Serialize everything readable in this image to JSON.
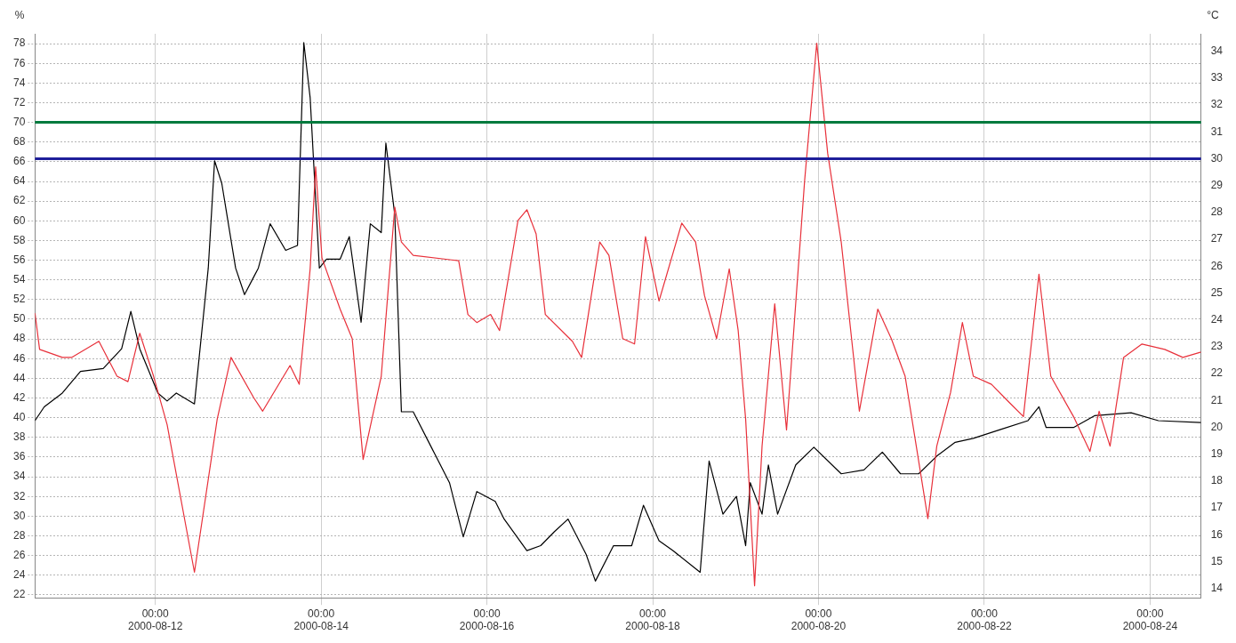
{
  "chart_data": {
    "type": "line",
    "ylabel": "%",
    "y2label": "°C",
    "xlim": [
      "2000-08-10T13:10",
      "2000-08-24T14:45"
    ],
    "xticks": [
      {
        "value": "2000-08-12T00:00",
        "label": "00:00\n2000-08-12"
      },
      {
        "value": "2000-08-14T00:00",
        "label": "00:00\n2000-08-14"
      },
      {
        "value": "2000-08-16T00:00",
        "label": "00:00\n2000-08-16"
      },
      {
        "value": "2000-08-18T00:00",
        "label": "00:00\n2000-08-18"
      },
      {
        "value": "2000-08-20T00:00",
        "label": "00:00\n2000-08-20"
      },
      {
        "value": "2000-08-22T00:00",
        "label": "00:00\n2000-08-22"
      },
      {
        "value": "2000-08-24T00:00",
        "label": "00:00\n2000-08-24"
      }
    ],
    "ylim": [
      21.7,
      79
    ],
    "yticks": [
      22,
      24,
      26,
      28,
      30,
      32,
      34,
      36,
      38,
      40,
      42,
      44,
      46,
      48,
      50,
      52,
      54,
      56,
      58,
      60,
      62,
      64,
      66,
      68,
      70,
      72,
      74,
      76,
      78
    ],
    "y2lim": [
      13.65,
      34.65
    ],
    "y2ticks": [
      14,
      15,
      16,
      17,
      18,
      19,
      20,
      21,
      22,
      23,
      24,
      25,
      26,
      27,
      28,
      29,
      30,
      31,
      32,
      33,
      34
    ],
    "grid": true,
    "legend": false,
    "ref_lines": [
      {
        "axis": "y",
        "value": 70,
        "color": "#007a3d"
      },
      {
        "axis": "y2",
        "value": 30,
        "color": "#1f1f9a"
      }
    ],
    "series": [
      {
        "color": "#000000",
        "axis": "y",
        "x": [
          "2000-08-10T13:10",
          "2000-08-10T15:50",
          "2000-08-10T21:05",
          "2000-08-11T02:20",
          "2000-08-11T08:55",
          "2000-08-11T14:15",
          "2000-08-11T16:55",
          "2000-08-11T19:30",
          "2000-08-12T00:45",
          "2000-08-12T03:25",
          "2000-08-12T06:05",
          "2000-08-12T11:20",
          "2000-08-12T15:20",
          "2000-08-12T17:10",
          "2000-08-12T19:15",
          "2000-08-12T23:15",
          "2000-08-13T01:50",
          "2000-08-13T04:30",
          "2000-08-13T05:50",
          "2000-08-13T09:15",
          "2000-08-13T13:45",
          "2000-08-13T17:10",
          "2000-08-13T19:00",
          "2000-08-13T20:50",
          "2000-08-13T23:30",
          "2000-08-14T01:35",
          "2000-08-14T05:30",
          "2000-08-14T08:10",
          "2000-08-14T11:35",
          "2000-08-14T14:15",
          "2000-08-14T17:25",
          "2000-08-14T18:45",
          "2000-08-14T21:20",
          "2000-08-14T23:15",
          "2000-08-15T02:40",
          "2000-08-15T07:55",
          "2000-08-15T13:10",
          "2000-08-15T17:10",
          "2000-08-15T21:05",
          "2000-08-16T02:25",
          "2000-08-16T05:00",
          "2000-08-16T11:35",
          "2000-08-16T15:35",
          "2000-08-16T19:30",
          "2000-08-16T23:30",
          "2000-08-17T04:45",
          "2000-08-17T07:25",
          "2000-08-17T12:40",
          "2000-08-17T17:55",
          "2000-08-17T21:20",
          "2000-08-18T01:50",
          "2000-08-18T05:50",
          "2000-08-18T13:45",
          "2000-08-18T16:20",
          "2000-08-18T20:20",
          "2000-08-19T00:15",
          "2000-08-19T02:55",
          "2000-08-19T04:15",
          "2000-08-19T07:40",
          "2000-08-19T09:30",
          "2000-08-19T12:10",
          "2000-08-19T17:25",
          "2000-08-19T22:40",
          "2000-08-20T06:35",
          "2000-08-20T13:10",
          "2000-08-20T18:30",
          "2000-08-20T23:45",
          "2000-08-21T05:00",
          "2000-08-21T10:15",
          "2000-08-21T15:35",
          "2000-08-21T20:50",
          "2000-08-22T04:45",
          "2000-08-22T12:40",
          "2000-08-22T15:50",
          "2000-08-22T17:55",
          "2000-08-23T01:50",
          "2000-08-23T07:55",
          "2000-08-23T18:30",
          "2000-08-24T02:25",
          "2000-08-24T14:45"
        ],
        "values": [
          39.7,
          41.1,
          42.5,
          44.7,
          45,
          47,
          50.8,
          47,
          42.5,
          41.7,
          42.5,
          41.4,
          55.2,
          66.1,
          63.8,
          55.2,
          52.5,
          54.3,
          55.2,
          59.7,
          57,
          57.5,
          78.1,
          72.5,
          55.2,
          56.1,
          56.1,
          58.4,
          49.7,
          59.7,
          58.8,
          67.9,
          60.6,
          40.6,
          40.6,
          37,
          33.4,
          27.9,
          32.5,
          31.5,
          29.7,
          26.5,
          27,
          28.4,
          29.7,
          26.1,
          23.4,
          27,
          27,
          31.1,
          27.5,
          26.5,
          24.3,
          35.6,
          30.2,
          32,
          27,
          33.4,
          30.2,
          35.2,
          30.2,
          35.2,
          37,
          34.3,
          34.7,
          36.5,
          34.3,
          34.3,
          36.1,
          37.5,
          37.9,
          38.8,
          39.7,
          41.1,
          39,
          39,
          40.2,
          40.5,
          39.7,
          39.5
        ]
      },
      {
        "color": "#e8303a",
        "axis": "y2",
        "x": [
          "2000-08-10T13:10",
          "2000-08-10T14:30",
          "2000-08-10T21:05",
          "2000-08-10T23:45",
          "2000-08-11T07:40",
          "2000-08-11T12:55",
          "2000-08-11T16:05",
          "2000-08-11T19:30",
          "2000-08-11T23:30",
          "2000-08-12T03:25",
          "2000-08-12T11:20",
          "2000-08-12T17:55",
          "2000-08-12T21:55",
          "2000-08-13T04:30",
          "2000-08-13T07:05",
          "2000-08-13T15:00",
          "2000-08-13T17:40",
          "2000-08-13T20:50",
          "2000-08-13T22:25",
          "2000-08-14T00:15",
          "2000-08-14T05:30",
          "2000-08-14T09:00",
          "2000-08-14T12:10",
          "2000-08-14T17:25",
          "2000-08-14T21:20",
          "2000-08-14T23:15",
          "2000-08-15T02:40",
          "2000-08-15T15:50",
          "2000-08-15T18:30",
          "2000-08-15T21:05",
          "2000-08-16T01:05",
          "2000-08-16T03:40",
          "2000-08-16T09:00",
          "2000-08-16T11:35",
          "2000-08-16T14:15",
          "2000-08-16T16:55",
          "2000-08-17T00:45",
          "2000-08-17T03:25",
          "2000-08-17T08:40",
          "2000-08-17T11:20",
          "2000-08-17T15:20",
          "2000-08-17T18:45",
          "2000-08-17T21:55",
          "2000-08-18T01:50",
          "2000-08-18T08:25",
          "2000-08-18T12:25",
          "2000-08-18T15:00",
          "2000-08-18T18:30",
          "2000-08-18T22:10",
          "2000-08-19T00:45",
          "2000-08-19T02:55",
          "2000-08-19T05:30",
          "2000-08-19T07:40",
          "2000-08-19T11:20",
          "2000-08-19T14:45",
          "2000-08-19T20:00",
          "2000-08-19T23:30",
          "2000-08-20T02:40",
          "2000-08-20T06:35",
          "2000-08-20T11:50",
          "2000-08-20T17:10",
          "2000-08-20T21:05",
          "2000-08-21T01:05",
          "2000-08-21T07:40",
          "2000-08-21T10:15",
          "2000-08-21T14:15",
          "2000-08-21T17:40",
          "2000-08-21T20:50",
          "2000-08-22T02:05",
          "2000-08-22T07:25",
          "2000-08-22T11:20",
          "2000-08-22T15:50",
          "2000-08-22T19:15",
          "2000-08-23T01:50",
          "2000-08-23T06:35",
          "2000-08-23T09:15",
          "2000-08-23T12:25",
          "2000-08-23T16:20",
          "2000-08-23T21:40",
          "2000-08-24T04:15",
          "2000-08-24T09:30",
          "2000-08-24T14:45"
        ],
        "values": [
          24.25,
          22.9,
          22.6,
          22.6,
          23.2,
          21.9,
          21.7,
          23.5,
          21.9,
          20.1,
          14.6,
          20.3,
          22.6,
          21.1,
          20.6,
          22.3,
          21.6,
          25.9,
          29.7,
          26.3,
          24.4,
          23.3,
          18.8,
          21.9,
          28.2,
          26.9,
          26.4,
          26.2,
          24.2,
          23.9,
          24.2,
          23.6,
          27.7,
          28.1,
          27.2,
          24.2,
          23.2,
          22.6,
          26.9,
          26.4,
          23.3,
          23.1,
          27.1,
          24.7,
          27.6,
          26.9,
          24.9,
          23.3,
          25.9,
          23.6,
          20.3,
          14.1,
          19.3,
          24.6,
          19.9,
          29.2,
          34.3,
          30.2,
          26.9,
          20.6,
          24.4,
          23.3,
          21.9,
          16.6,
          19.3,
          21.3,
          23.9,
          21.9,
          21.6,
          20.9,
          20.4,
          25.7,
          21.9,
          20.4,
          19.1,
          20.6,
          19.3,
          22.6,
          23.1,
          22.9,
          22.6,
          22.8
        ]
      }
    ]
  }
}
